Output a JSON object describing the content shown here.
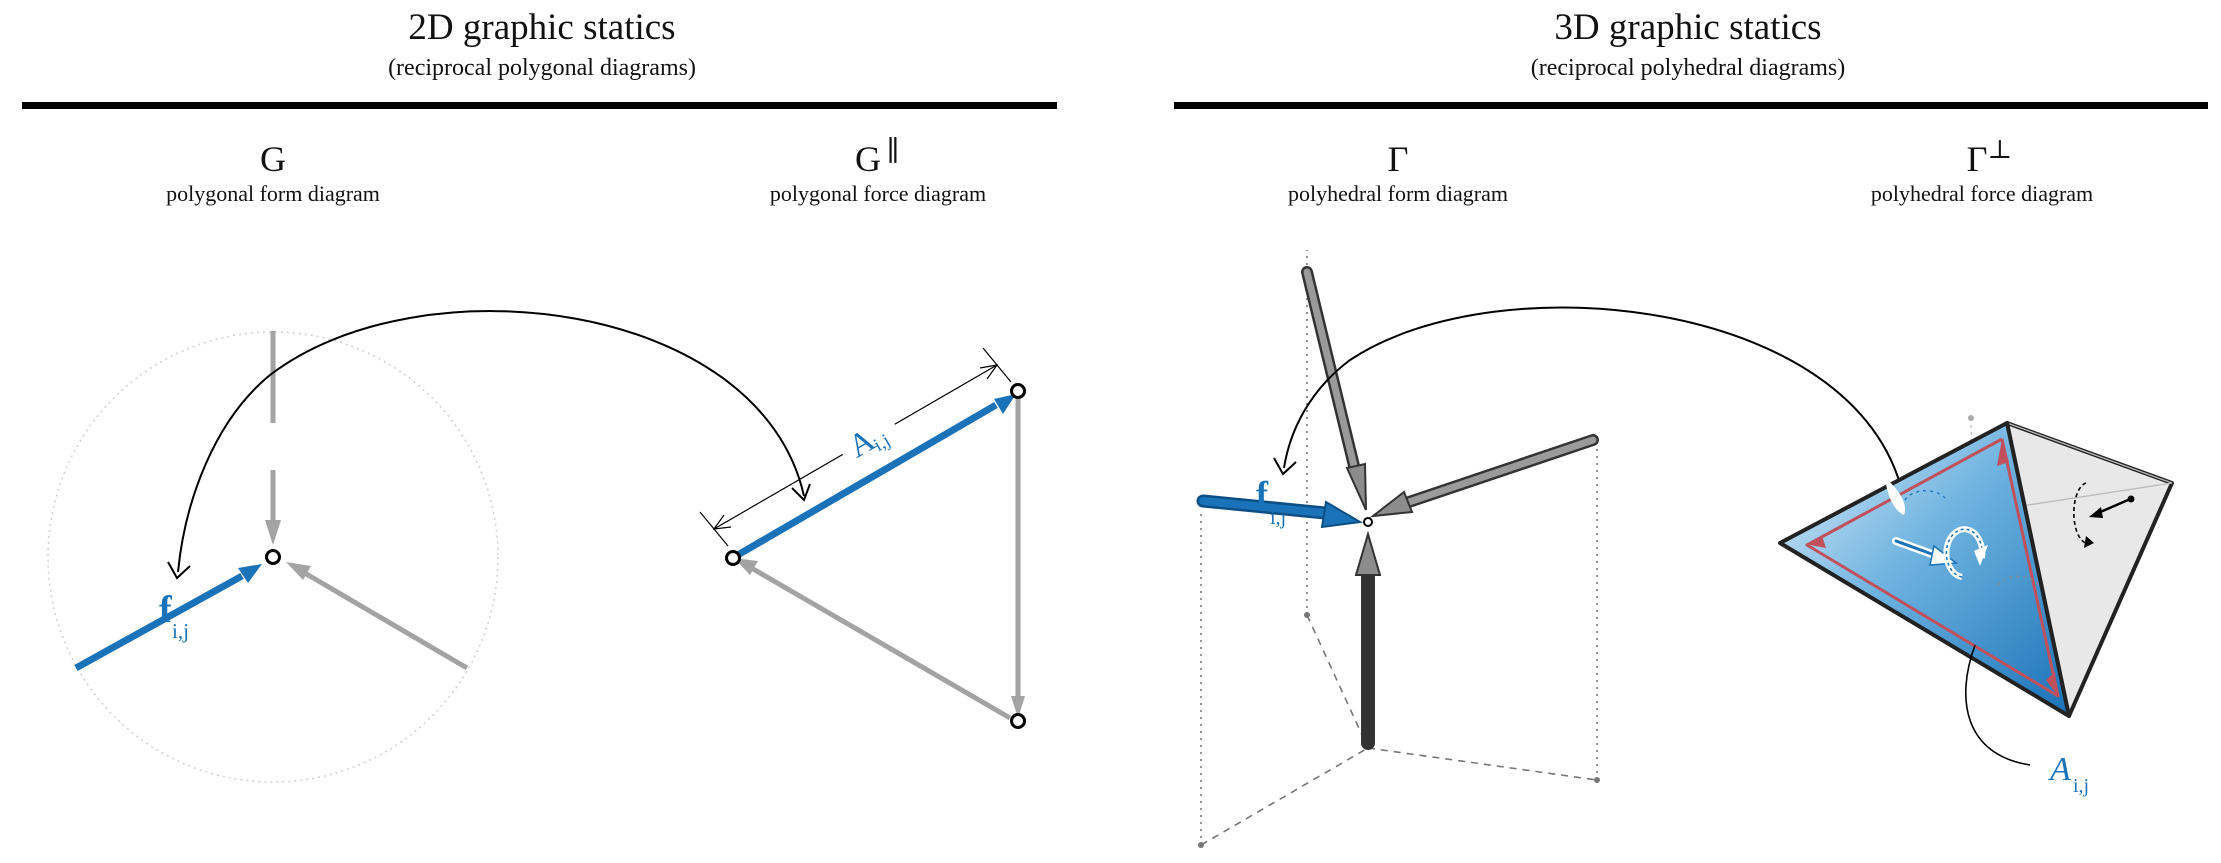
{
  "left_panel": {
    "title": "2D graphic statics",
    "subtitle": "(reciprocal polygonal diagrams)",
    "form": {
      "symbol": "G",
      "caption": "polygonal form diagram",
      "vector_label": "f",
      "vector_subscript": "i,j"
    },
    "force": {
      "symbol": "G",
      "symbol_sup": "∥",
      "caption": "polygonal force diagram",
      "edge_label": "A",
      "edge_subscript": "i,j"
    }
  },
  "right_panel": {
    "title": "3D graphic statics",
    "subtitle": "(reciprocal polyhedral diagrams)",
    "form": {
      "symbol": "Γ",
      "caption": "polyhedral form diagram",
      "vector_label": "f",
      "vector_subscript": "i,j"
    },
    "force": {
      "symbol": "Γ",
      "symbol_sup": "⊥",
      "caption": "polyhedral force diagram",
      "face_label": "A",
      "face_subscript": "i,j"
    }
  },
  "colors": {
    "blue": "#1a72b8",
    "gray_member": "#a3a3a3",
    "dark_gray": "#5c5c5c",
    "rule": "#000000",
    "red_edge": "#c0505a"
  }
}
